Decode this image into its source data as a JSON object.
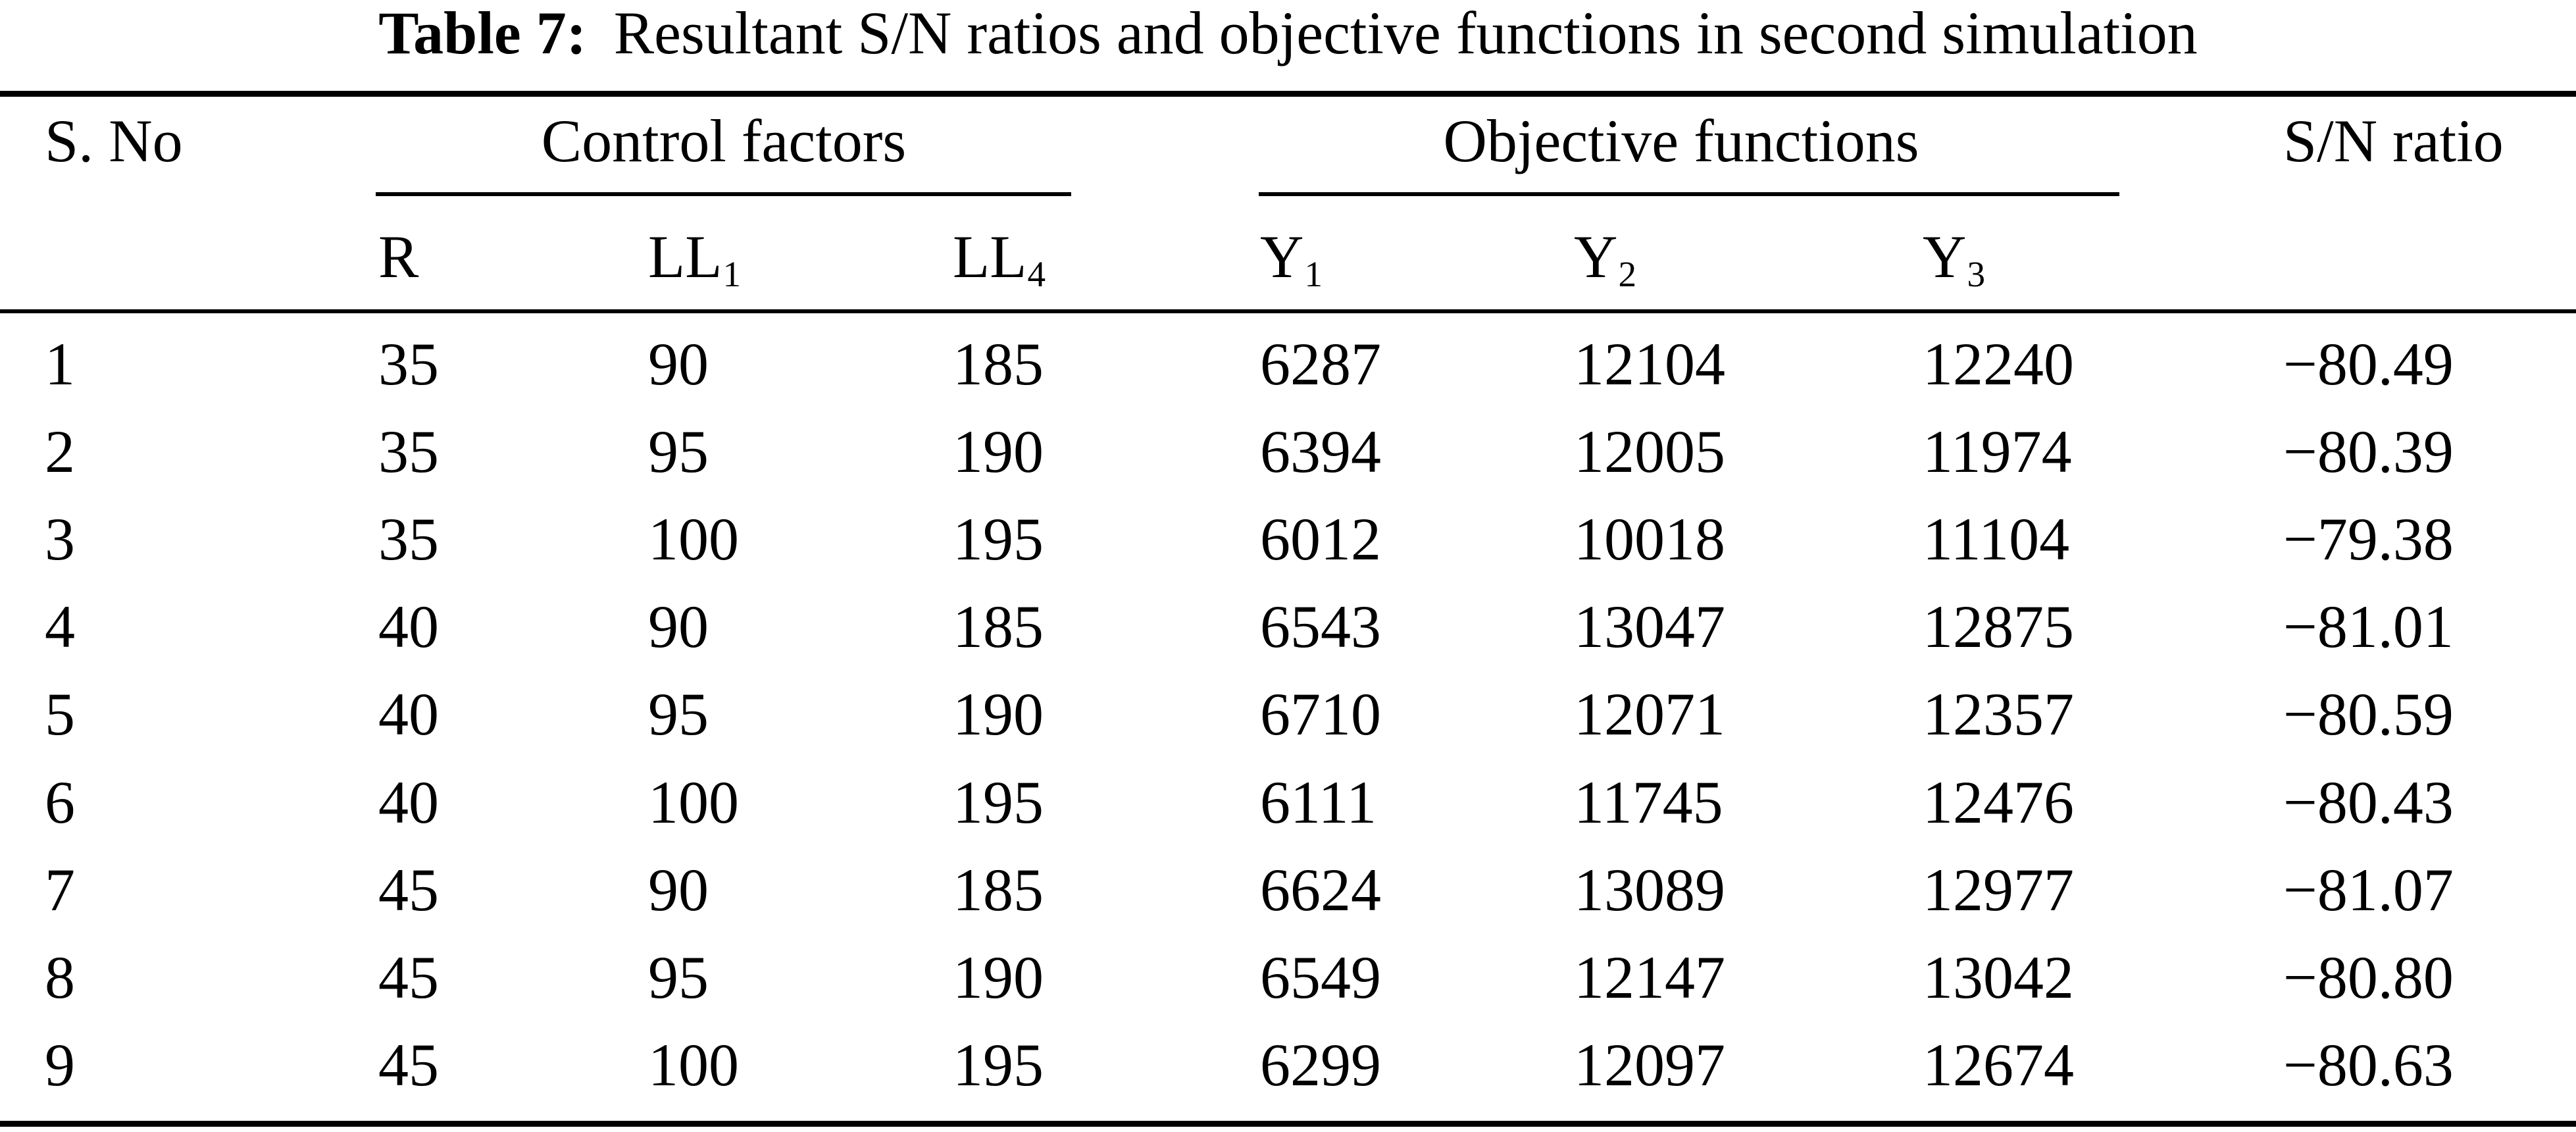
{
  "colors": {
    "text": "#000000",
    "background": "#ffffff"
  },
  "caption": {
    "label": "Table 7:",
    "text": "Resultant S/N ratios and objective functions in second simulation"
  },
  "table": {
    "header": {
      "s_no": "S. No",
      "control_factors": "Control factors",
      "objective_functions": "Objective functions",
      "sn_ratio": "S/N ratio",
      "sub_columns": [
        {
          "base": "R",
          "sub": ""
        },
        {
          "base": "LL",
          "sub": "1"
        },
        {
          "base": "LL",
          "sub": "4"
        },
        {
          "base": "Y",
          "sub": "1"
        },
        {
          "base": "Y",
          "sub": "2"
        },
        {
          "base": "Y",
          "sub": "3"
        }
      ]
    },
    "rows": [
      {
        "s_no": "1",
        "r": "35",
        "ll1": "90",
        "ll4": "185",
        "y1": "6287",
        "y2": "12104",
        "y3": "12240",
        "sn": "−80.49"
      },
      {
        "s_no": "2",
        "r": "35",
        "ll1": "95",
        "ll4": "190",
        "y1": "6394",
        "y2": "12005",
        "y3": "11974",
        "sn": "−80.39"
      },
      {
        "s_no": "3",
        "r": "35",
        "ll1": "100",
        "ll4": "195",
        "y1": "6012",
        "y2": "10018",
        "y3": "11104",
        "sn": "−79.38"
      },
      {
        "s_no": "4",
        "r": "40",
        "ll1": "90",
        "ll4": "185",
        "y1": "6543",
        "y2": "13047",
        "y3": "12875",
        "sn": "−81.01"
      },
      {
        "s_no": "5",
        "r": "40",
        "ll1": "95",
        "ll4": "190",
        "y1": "6710",
        "y2": "12071",
        "y3": "12357",
        "sn": "−80.59"
      },
      {
        "s_no": "6",
        "r": "40",
        "ll1": "100",
        "ll4": "195",
        "y1": "6111",
        "y2": "11745",
        "y3": "12476",
        "sn": "−80.43"
      },
      {
        "s_no": "7",
        "r": "45",
        "ll1": "90",
        "ll4": "185",
        "y1": "6624",
        "y2": "13089",
        "y3": "12977",
        "sn": "−81.07"
      },
      {
        "s_no": "8",
        "r": "45",
        "ll1": "95",
        "ll4": "190",
        "y1": "6549",
        "y2": "12147",
        "y3": "13042",
        "sn": "−80.80"
      },
      {
        "s_no": "9",
        "r": "45",
        "ll1": "100",
        "ll4": "195",
        "y1": "6299",
        "y2": "12097",
        "y3": "12674",
        "sn": "−80.63"
      }
    ]
  }
}
